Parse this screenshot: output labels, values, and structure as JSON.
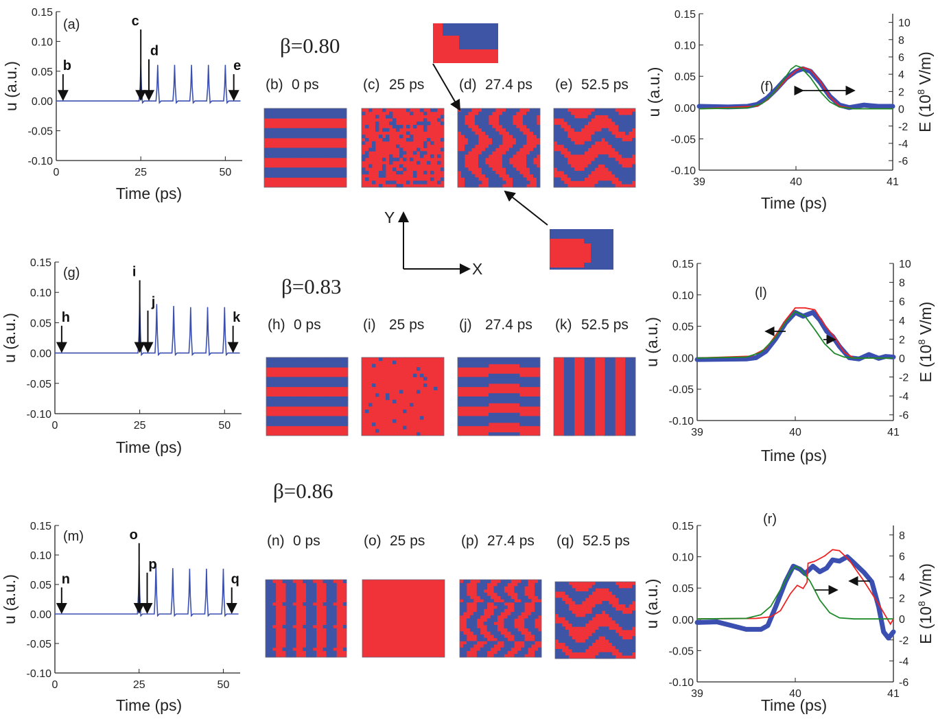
{
  "colors": {
    "spin_up": "#ef3338",
    "spin_down": "#3e55a6",
    "u_series": "#3a4fb0",
    "E_red": "#ee2222",
    "E_green": "#1d8a2a"
  },
  "beta_labels": [
    "β=0.80",
    "β=0.83",
    "β=0.86"
  ],
  "axes_diagram": {
    "y_label": "Y",
    "x_label": "X"
  },
  "maps": [
    {
      "panel": "(b)",
      "time": "0 ps"
    },
    {
      "panel": "(c)",
      "time": "25 ps"
    },
    {
      "panel": "(d)",
      "time": "27.4 ps"
    },
    {
      "panel": "(e)",
      "time": "52.5 ps"
    },
    {
      "panel": "(h)",
      "time": "0 ps"
    },
    {
      "panel": "(i)",
      "time": "25 ps"
    },
    {
      "panel": "(j)",
      "time": "27.4 ps"
    },
    {
      "panel": "(k)",
      "time": "52.5 ps"
    },
    {
      "panel": "(n)",
      "time": "0 ps"
    },
    {
      "panel": "(o)",
      "time": "25 ps"
    },
    {
      "panel": "(p)",
      "time": "27.4 ps"
    },
    {
      "panel": "(q)",
      "time": "52.5 ps"
    }
  ],
  "chart_data": [
    {
      "type": "line",
      "panel": "(a)",
      "xlabel": "Time (ps)",
      "ylabel": "u (a.u.)",
      "xlim": [
        0,
        55
      ],
      "ylim": [
        -0.1,
        0.15
      ],
      "xticks": [
        "0",
        "25",
        "50"
      ],
      "yticks": [
        "-0.10",
        "-0.05",
        "0.00",
        "0.05",
        "0.10",
        "0.15"
      ],
      "baseline": 0,
      "peaks": [
        [
          25,
          0.06
        ],
        [
          30,
          0.06
        ],
        [
          35,
          0.06
        ],
        [
          40,
          0.06
        ],
        [
          45,
          0.06
        ],
        [
          50,
          0.06
        ]
      ],
      "markers": [
        {
          "label": "b",
          "t": 2
        },
        {
          "label": "c",
          "t": 25
        },
        {
          "label": "d",
          "t": 27.4
        },
        {
          "label": "e",
          "t": 52.5
        }
      ]
    },
    {
      "type": "line",
      "panel": "(g)",
      "xlabel": "Time (ps)",
      "ylabel": "u (a.u.)",
      "xlim": [
        0,
        55
      ],
      "ylim": [
        -0.1,
        0.15
      ],
      "xticks": [
        "0",
        "25",
        "50"
      ],
      "yticks": [
        "-0.10",
        "-0.05",
        "0.00",
        "0.05",
        "0.10",
        "0.15"
      ],
      "baseline": 0,
      "peaks": [
        [
          25,
          0.085
        ],
        [
          30,
          0.08
        ],
        [
          35,
          0.077
        ],
        [
          40,
          0.075
        ],
        [
          45,
          0.075
        ],
        [
          50,
          0.075
        ]
      ],
      "markers": [
        {
          "label": "h",
          "t": 2
        },
        {
          "label": "i",
          "t": 25
        },
        {
          "label": "j",
          "t": 27.4
        },
        {
          "label": "k",
          "t": 52.5
        }
      ]
    },
    {
      "type": "line",
      "panel": "(m)",
      "xlabel": "Time (ps)",
      "ylabel": "u (a.u.)",
      "xlim": [
        0,
        55
      ],
      "ylim": [
        -0.1,
        0.15
      ],
      "xticks": [
        "0",
        "25",
        "50"
      ],
      "yticks": [
        "-0.10",
        "-0.05",
        "0.00",
        "0.05",
        "0.10",
        "0.15"
      ],
      "baseline": 0,
      "peaks": [
        [
          25,
          0.085
        ],
        [
          30,
          0.085
        ],
        [
          35,
          0.077
        ],
        [
          40,
          0.076
        ],
        [
          45,
          0.076
        ],
        [
          50,
          0.076
        ]
      ],
      "markers": [
        {
          "label": "n",
          "t": 2
        },
        {
          "label": "o",
          "t": 25
        },
        {
          "label": "p",
          "t": 27.4
        },
        {
          "label": "q",
          "t": 52.5
        }
      ]
    },
    {
      "type": "line",
      "panel": "(f)",
      "xlabel": "Time (ps)",
      "ylabel": "u (a.u.)",
      "ylabel_right": [
        "E (10",
        "8",
        " V/m)"
      ],
      "xlim": [
        39,
        41
      ],
      "ylim": [
        -0.1,
        0.15
      ],
      "ylim_right": [
        -7.1,
        11
      ],
      "xticks": [
        "39",
        "40",
        "41"
      ],
      "yticks": [
        "-0.10",
        "-0.05",
        "0.00",
        "0.05",
        "0.10",
        "0.15"
      ],
      "yticks_right": [
        "-6",
        "-4",
        "-2",
        "0",
        "2",
        "4",
        "6",
        "8",
        "10"
      ],
      "series": [
        {
          "axis": "left",
          "color": "#3a4fb0",
          "style": "markers",
          "points": [
            [
              39,
              0.002
            ],
            [
              39.3,
              0.001
            ],
            [
              39.5,
              0.002
            ],
            [
              39.6,
              0.005
            ],
            [
              39.7,
              0.015
            ],
            [
              39.8,
              0.03
            ],
            [
              39.9,
              0.047
            ],
            [
              40,
              0.058
            ],
            [
              40.07,
              0.062
            ],
            [
              40.15,
              0.058
            ],
            [
              40.25,
              0.04
            ],
            [
              40.35,
              0.018
            ],
            [
              40.45,
              0.004
            ],
            [
              40.55,
              0
            ],
            [
              40.7,
              0.004
            ],
            [
              40.85,
              0.002
            ],
            [
              41,
              0.002
            ]
          ]
        },
        {
          "axis": "right",
          "color": "#ee2222",
          "style": "line",
          "points": [
            [
              39,
              0
            ],
            [
              39.6,
              0.3
            ],
            [
              39.7,
              1
            ],
            [
              39.8,
              2.2
            ],
            [
              39.9,
              3.4
            ],
            [
              40,
              4.4
            ],
            [
              40.07,
              4.8
            ],
            [
              40.15,
              4.5
            ],
            [
              40.25,
              3.2
            ],
            [
              40.35,
              1.4
            ],
            [
              40.45,
              0.3
            ],
            [
              40.6,
              0
            ],
            [
              41,
              0
            ]
          ]
        },
        {
          "axis": "right",
          "color": "#1d8a2a",
          "style": "line",
          "points": [
            [
              39,
              0
            ],
            [
              39.5,
              0.1
            ],
            [
              39.65,
              0.6
            ],
            [
              39.75,
              1.6
            ],
            [
              39.85,
              3
            ],
            [
              39.95,
              4.6
            ],
            [
              40,
              5
            ],
            [
              40.05,
              4.8
            ],
            [
              40.15,
              3.6
            ],
            [
              40.25,
              2
            ],
            [
              40.35,
              0.8
            ],
            [
              40.45,
              0.2
            ],
            [
              40.6,
              0
            ],
            [
              41,
              0
            ]
          ]
        }
      ]
    },
    {
      "type": "line",
      "panel": "(l)",
      "xlabel": "Time (ps)",
      "ylabel": "u (a.u.)",
      "ylabel_right": [
        "E (10",
        "8",
        " V/m)"
      ],
      "xlim": [
        39,
        41
      ],
      "ylim": [
        -0.1,
        0.15
      ],
      "ylim_right": [
        -6.6,
        10
      ],
      "xticks": [
        "39",
        "40",
        "41"
      ],
      "yticks": [
        "-0.10",
        "-0.05",
        "0.00",
        "0.05",
        "0.10",
        "0.15"
      ],
      "yticks_right": [
        "-6",
        "-4",
        "-2",
        "0",
        "2",
        "4",
        "6",
        "8",
        "10"
      ],
      "series": [
        {
          "axis": "left",
          "color": "#3a4fb0",
          "style": "markers",
          "points": [
            [
              39,
              -0.003
            ],
            [
              39.5,
              -0.002
            ],
            [
              39.6,
              0
            ],
            [
              39.7,
              0.01
            ],
            [
              39.8,
              0.03
            ],
            [
              39.9,
              0.055
            ],
            [
              40,
              0.072
            ],
            [
              40.08,
              0.066
            ],
            [
              40.18,
              0.072
            ],
            [
              40.25,
              0.06
            ],
            [
              40.32,
              0.042
            ],
            [
              40.38,
              0.034
            ],
            [
              40.45,
              0.018
            ],
            [
              40.55,
              0
            ],
            [
              40.65,
              -0.002
            ],
            [
              40.75,
              0.005
            ],
            [
              40.85,
              -0.001
            ],
            [
              40.92,
              0.002
            ],
            [
              41,
              0.001
            ]
          ]
        },
        {
          "axis": "right",
          "color": "#ee2222",
          "style": "line",
          "points": [
            [
              39,
              0
            ],
            [
              39.55,
              0.2
            ],
            [
              39.7,
              1
            ],
            [
              39.8,
              2.4
            ],
            [
              39.9,
              4
            ],
            [
              40,
              5.3
            ],
            [
              40.1,
              5.3
            ],
            [
              40.2,
              5.1
            ],
            [
              40.3,
              3.5
            ],
            [
              40.4,
              2.2
            ],
            [
              40.5,
              0.6
            ],
            [
              40.6,
              0
            ],
            [
              41,
              0
            ]
          ]
        },
        {
          "axis": "right",
          "color": "#1d8a2a",
          "style": "line",
          "points": [
            [
              39,
              0
            ],
            [
              39.5,
              0.1
            ],
            [
              39.65,
              0.6
            ],
            [
              39.8,
              2.2
            ],
            [
              39.9,
              3.8
            ],
            [
              40,
              4.9
            ],
            [
              40.1,
              4.4
            ],
            [
              40.2,
              3
            ],
            [
              40.3,
              1.5
            ],
            [
              40.4,
              0.5
            ],
            [
              40.5,
              0.1
            ],
            [
              40.6,
              0
            ],
            [
              41,
              0
            ]
          ]
        }
      ]
    },
    {
      "type": "line",
      "panel": "(r)",
      "xlabel": "Time (ps)",
      "ylabel": "u (a.u.)",
      "ylabel_right": [
        "E (10",
        "8",
        " V/m)"
      ],
      "xlim": [
        39,
        41
      ],
      "ylim": [
        -0.1,
        0.15
      ],
      "ylim_right": [
        -6,
        8.9
      ],
      "xticks": [
        "39",
        "40",
        "41"
      ],
      "yticks": [
        "-0.10",
        "-0.05",
        "0.00",
        "0.05",
        "0.10",
        "0.15"
      ],
      "yticks_right": [
        "-6",
        "-4",
        "-2",
        "0",
        "2",
        "4",
        "6",
        "8"
      ],
      "series": [
        {
          "axis": "left",
          "color": "#3a4fb0",
          "style": "markers",
          "points": [
            [
              39,
              -0.005
            ],
            [
              39.2,
              -0.004
            ],
            [
              39.35,
              -0.01
            ],
            [
              39.5,
              -0.016
            ],
            [
              39.65,
              -0.016
            ],
            [
              39.72,
              -0.01
            ],
            [
              39.8,
              0.02
            ],
            [
              39.9,
              0.06
            ],
            [
              39.98,
              0.085
            ],
            [
              40.05,
              0.08
            ],
            [
              40.1,
              0.073
            ],
            [
              40.18,
              0.085
            ],
            [
              40.25,
              0.076
            ],
            [
              40.32,
              0.082
            ],
            [
              40.38,
              0.095
            ],
            [
              40.45,
              0.093
            ],
            [
              40.53,
              0.1
            ],
            [
              40.6,
              0.09
            ],
            [
              40.7,
              0.075
            ],
            [
              40.78,
              0.06
            ],
            [
              40.85,
              0.02
            ],
            [
              40.9,
              -0.02
            ],
            [
              40.95,
              -0.03
            ],
            [
              41,
              -0.02
            ]
          ]
        },
        {
          "axis": "right",
          "color": "#ee2222",
          "style": "line",
          "points": [
            [
              39,
              0
            ],
            [
              39.6,
              0.05
            ],
            [
              39.75,
              0.2
            ],
            [
              39.85,
              0.8
            ],
            [
              39.95,
              2.4
            ],
            [
              40.02,
              3.2
            ],
            [
              40.08,
              2.9
            ],
            [
              40.12,
              3.5
            ],
            [
              40.13,
              5.3
            ],
            [
              40.2,
              5.5
            ],
            [
              40.3,
              6.0
            ],
            [
              40.38,
              6.6
            ],
            [
              40.45,
              6.5
            ],
            [
              40.55,
              5.6
            ],
            [
              40.7,
              3.6
            ],
            [
              40.85,
              1.4
            ],
            [
              40.97,
              -0.5
            ],
            [
              41,
              0
            ]
          ]
        },
        {
          "axis": "right",
          "color": "#1d8a2a",
          "style": "line",
          "points": [
            [
              39,
              0
            ],
            [
              39.5,
              0.05
            ],
            [
              39.65,
              0.4
            ],
            [
              39.75,
              1.2
            ],
            [
              39.85,
              2.8
            ],
            [
              39.95,
              4.5
            ],
            [
              40,
              5
            ],
            [
              40.05,
              4.8
            ],
            [
              40.15,
              3.6
            ],
            [
              40.25,
              1.8
            ],
            [
              40.35,
              0.6
            ],
            [
              40.45,
              0.1
            ],
            [
              40.6,
              0
            ],
            [
              41,
              0
            ]
          ]
        }
      ]
    }
  ]
}
